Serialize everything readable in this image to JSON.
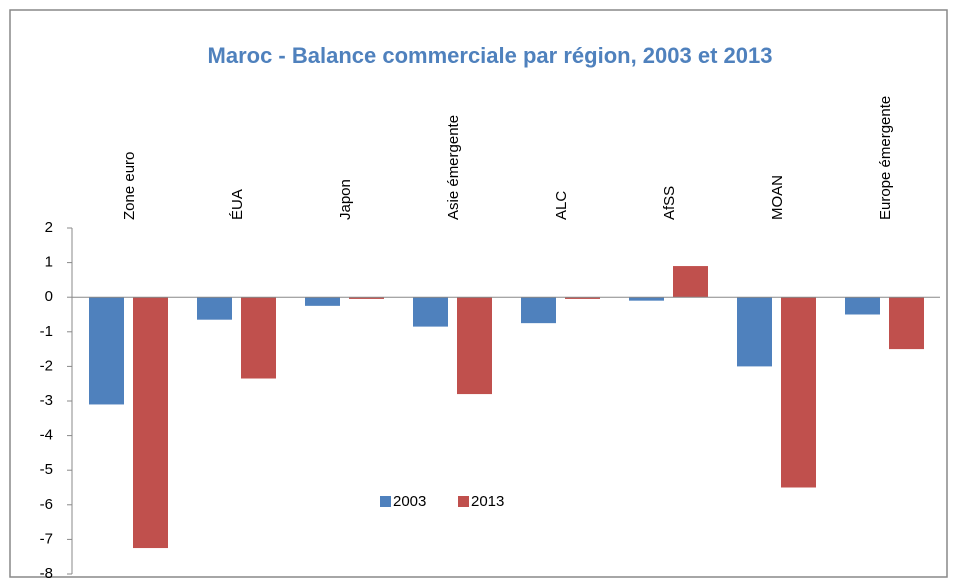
{
  "chart_data": {
    "type": "bar",
    "title": "Maroc -   Balance commerciale par région, 2003 et 2013",
    "categories": [
      "Zone euro",
      "ÉUA",
      "Japon",
      "Asie émergente",
      "ALC",
      "AfSS",
      "MOAN",
      "Europe émergente"
    ],
    "series": [
      {
        "name": "2003",
        "color": "#4f81bd",
        "values": [
          -3.1,
          -0.65,
          -0.25,
          -0.85,
          -0.75,
          -0.1,
          -2.0,
          -0.5
        ]
      },
      {
        "name": "2013",
        "color": "#c0504d",
        "values": [
          -7.25,
          -2.35,
          -0.05,
          -2.8,
          -0.05,
          0.9,
          -5.5,
          -1.5
        ]
      }
    ],
    "ylim": [
      -8,
      2
    ],
    "yticks": [
      -8,
      -7,
      -6,
      -5,
      -4,
      -3,
      -2,
      -1,
      0,
      1,
      2
    ],
    "legend": "inside-bottom-center"
  }
}
